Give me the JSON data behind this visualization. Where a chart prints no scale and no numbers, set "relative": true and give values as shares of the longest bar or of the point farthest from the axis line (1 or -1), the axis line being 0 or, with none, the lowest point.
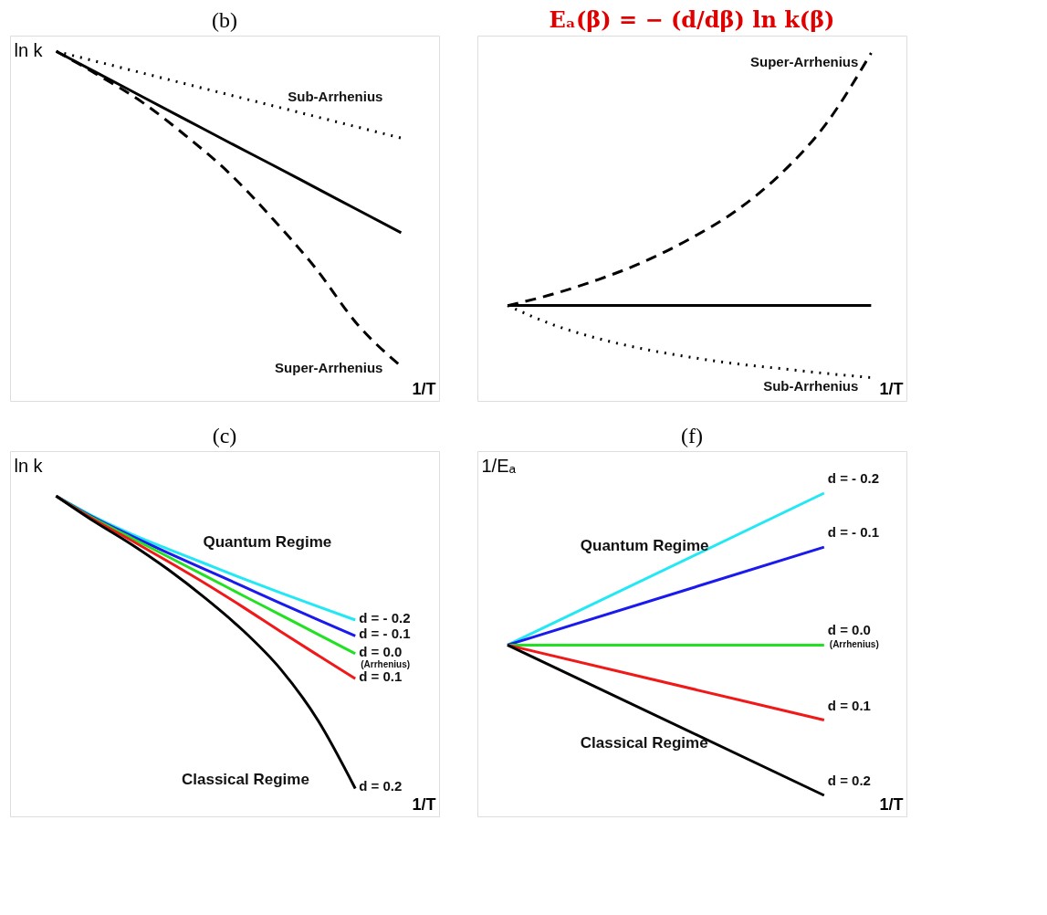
{
  "chart_data": [
    {
      "type": "line",
      "title": "(b)",
      "ylabel": "ln k",
      "xlabel": "1/T",
      "relative": true,
      "categories": [
        null,
        null,
        null,
        null,
        null,
        null,
        null,
        null,
        null
      ],
      "series": [
        {
          "color": "#000000",
          "line_style": "solid",
          "values": [
            1,
            0.935,
            0.87,
            0.805,
            0.74,
            0.676,
            0.611,
            0.546,
            0.481
          ]
        },
        {
          "name": "Sub-Arrhenius",
          "color": "#000000",
          "line_style": "dotted",
          "values": [
            1,
            0.969,
            0.938,
            0.907,
            0.876,
            0.845,
            0.814,
            0.783,
            0.752
          ]
        },
        {
          "name": "Super-Arrhenius",
          "color": "#000000",
          "line_style": "dashed",
          "values": [
            1,
            0.93,
            0.854,
            0.759,
            0.653,
            0.524,
            0.382,
            0.217,
            0.099
          ]
        }
      ]
    },
    {
      "type": "line",
      "title": "Eₐ(β) = − (d/dβ) ln k(β)",
      "xlabel": "1/T",
      "relative": true,
      "categories": [
        null,
        null,
        null,
        null,
        null,
        null,
        null,
        null,
        null
      ],
      "series": [
        {
          "color": "#000000",
          "line_style": "solid",
          "values": [
            0.274,
            0.274,
            0.274,
            0.274,
            0.274,
            0.274,
            0.274,
            0.274,
            0.274
          ]
        },
        {
          "name": "Super-Arrhenius",
          "color": "#000000",
          "line_style": "dashed",
          "values": [
            0.274,
            0.307,
            0.349,
            0.4,
            0.465,
            0.544,
            0.651,
            0.795,
            1
          ]
        },
        {
          "name": "Sub-Arrhenius",
          "color": "#000000",
          "line_style": "dotted",
          "values": [
            0.274,
            0.219,
            0.179,
            0.149,
            0.126,
            0.107,
            0.093,
            0.079,
            0.067
          ]
        }
      ]
    },
    {
      "type": "line",
      "title": "(c)",
      "ylabel": "ln k",
      "xlabel": "1/T",
      "relative": true,
      "annotations": [
        "Quantum Regime",
        "Classical Regime",
        "(Arrhenius)"
      ],
      "categories": [
        null,
        null,
        null,
        null,
        null,
        null,
        null,
        null,
        null
      ],
      "series": [
        {
          "name": "d = - 0.2",
          "color": "#22e8f5",
          "values": [
            1,
            0.936,
            0.882,
            0.834,
            0.788,
            0.742,
            0.698,
            0.655,
            0.613
          ]
        },
        {
          "name": "d = - 0.1",
          "color": "#1a1aee",
          "values": [
            1,
            0.933,
            0.876,
            0.822,
            0.77,
            0.718,
            0.665,
            0.614,
            0.563
          ]
        },
        {
          "name": "d =  0.0",
          "color": "#22e022",
          "values": [
            1,
            0.93,
            0.87,
            0.81,
            0.75,
            0.689,
            0.629,
            0.568,
            0.508
          ]
        },
        {
          "name": "d =  0.1",
          "color": "#f01818",
          "values": [
            1,
            0.927,
            0.862,
            0.795,
            0.726,
            0.653,
            0.577,
            0.503,
            0.43
          ]
        },
        {
          "name": "d =  0.2",
          "color": "#000000",
          "values": [
            1,
            0.922,
            0.85,
            0.77,
            0.68,
            0.58,
            0.46,
            0.3,
            0.087
          ]
        }
      ]
    },
    {
      "type": "line",
      "title": "(f)",
      "ylabel": "1/Eₐ",
      "xlabel": "1/T",
      "relative": true,
      "annotations": [
        "Quantum Regime",
        "Classical Regime",
        "(Arrhenius)"
      ],
      "categories": [
        null,
        null
      ],
      "series": [
        {
          "name": "d = - 0.2",
          "color": "#22e8f5",
          "values": [
            0.53,
            1
          ]
        },
        {
          "name": "d = - 0.1",
          "color": "#1a1aee",
          "values": [
            0.53,
            0.833
          ]
        },
        {
          "name": "d =  0.0",
          "color": "#22e022",
          "values": [
            0.53,
            0.53
          ]
        },
        {
          "name": "d =  0.1",
          "color": "#f01818",
          "values": [
            0.53,
            0.298
          ]
        },
        {
          "name": "d =  0.2",
          "color": "#000000",
          "values": [
            0.53,
            0.065
          ]
        }
      ]
    }
  ]
}
